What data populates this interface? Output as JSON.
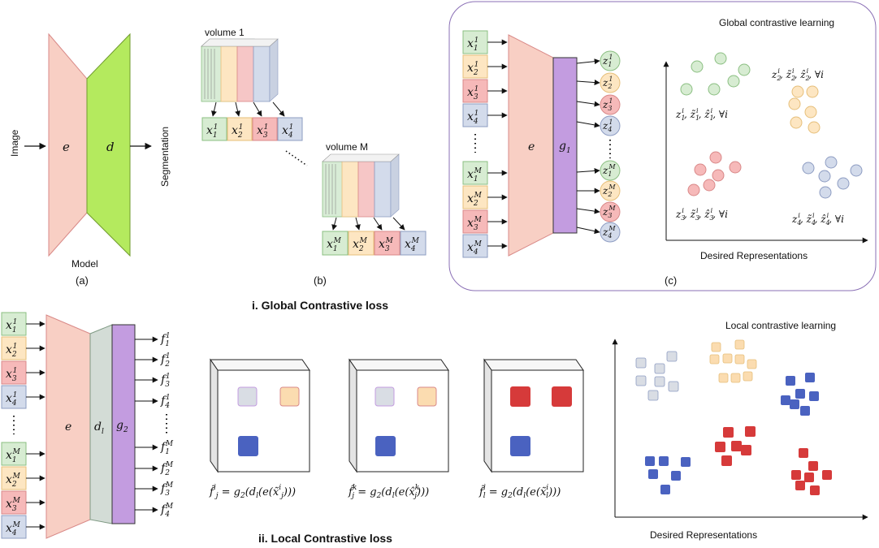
{
  "panel_a": {
    "input_label": "Image",
    "output_label": "Segmentation",
    "encoder_label": "e",
    "decoder_label": "d",
    "model_label": "Model",
    "caption": "(a)"
  },
  "panel_b": {
    "volume1_label": "volume 1",
    "volumeM_label": "volume M",
    "caption": "(b)",
    "partitions_volume1": [
      "x",
      "x",
      "x",
      "x"
    ],
    "partitions_volumeM": [
      "x",
      "x",
      "x",
      "x"
    ]
  },
  "panel_c": {
    "title": "Global contrastive learning",
    "encoder_label": "e",
    "projector_label": "g",
    "x_axis_label": "Desired Representations",
    "caption": "(c)",
    "cluster_labels": [
      "z",
      "z",
      "z",
      "z"
    ]
  },
  "global_title": "i. Global Contrastive loss",
  "local_title": "ii. Local Contrastive loss",
  "local_net": {
    "encoder_label": "e",
    "decoder_label": "d",
    "projector_label": "g"
  },
  "local_panel": {
    "title": "Local contrastive learning",
    "x_axis_label": "Desired Representations"
  },
  "colors": {
    "encoder": "#f8cfc4",
    "decoder": "#b4ea5e",
    "projector": "#c39ce0",
    "decoder_local": "#d3dcd6",
    "green": "#d7ecd2",
    "yellow": "#fde6c2",
    "red": "#f6b9b9",
    "blue": "#d3dbeb",
    "gray_square": "#d9dde4",
    "yellow_square": "#fbdcb0",
    "blue_square": "#4a62c0",
    "red_square": "#d63a3a"
  }
}
